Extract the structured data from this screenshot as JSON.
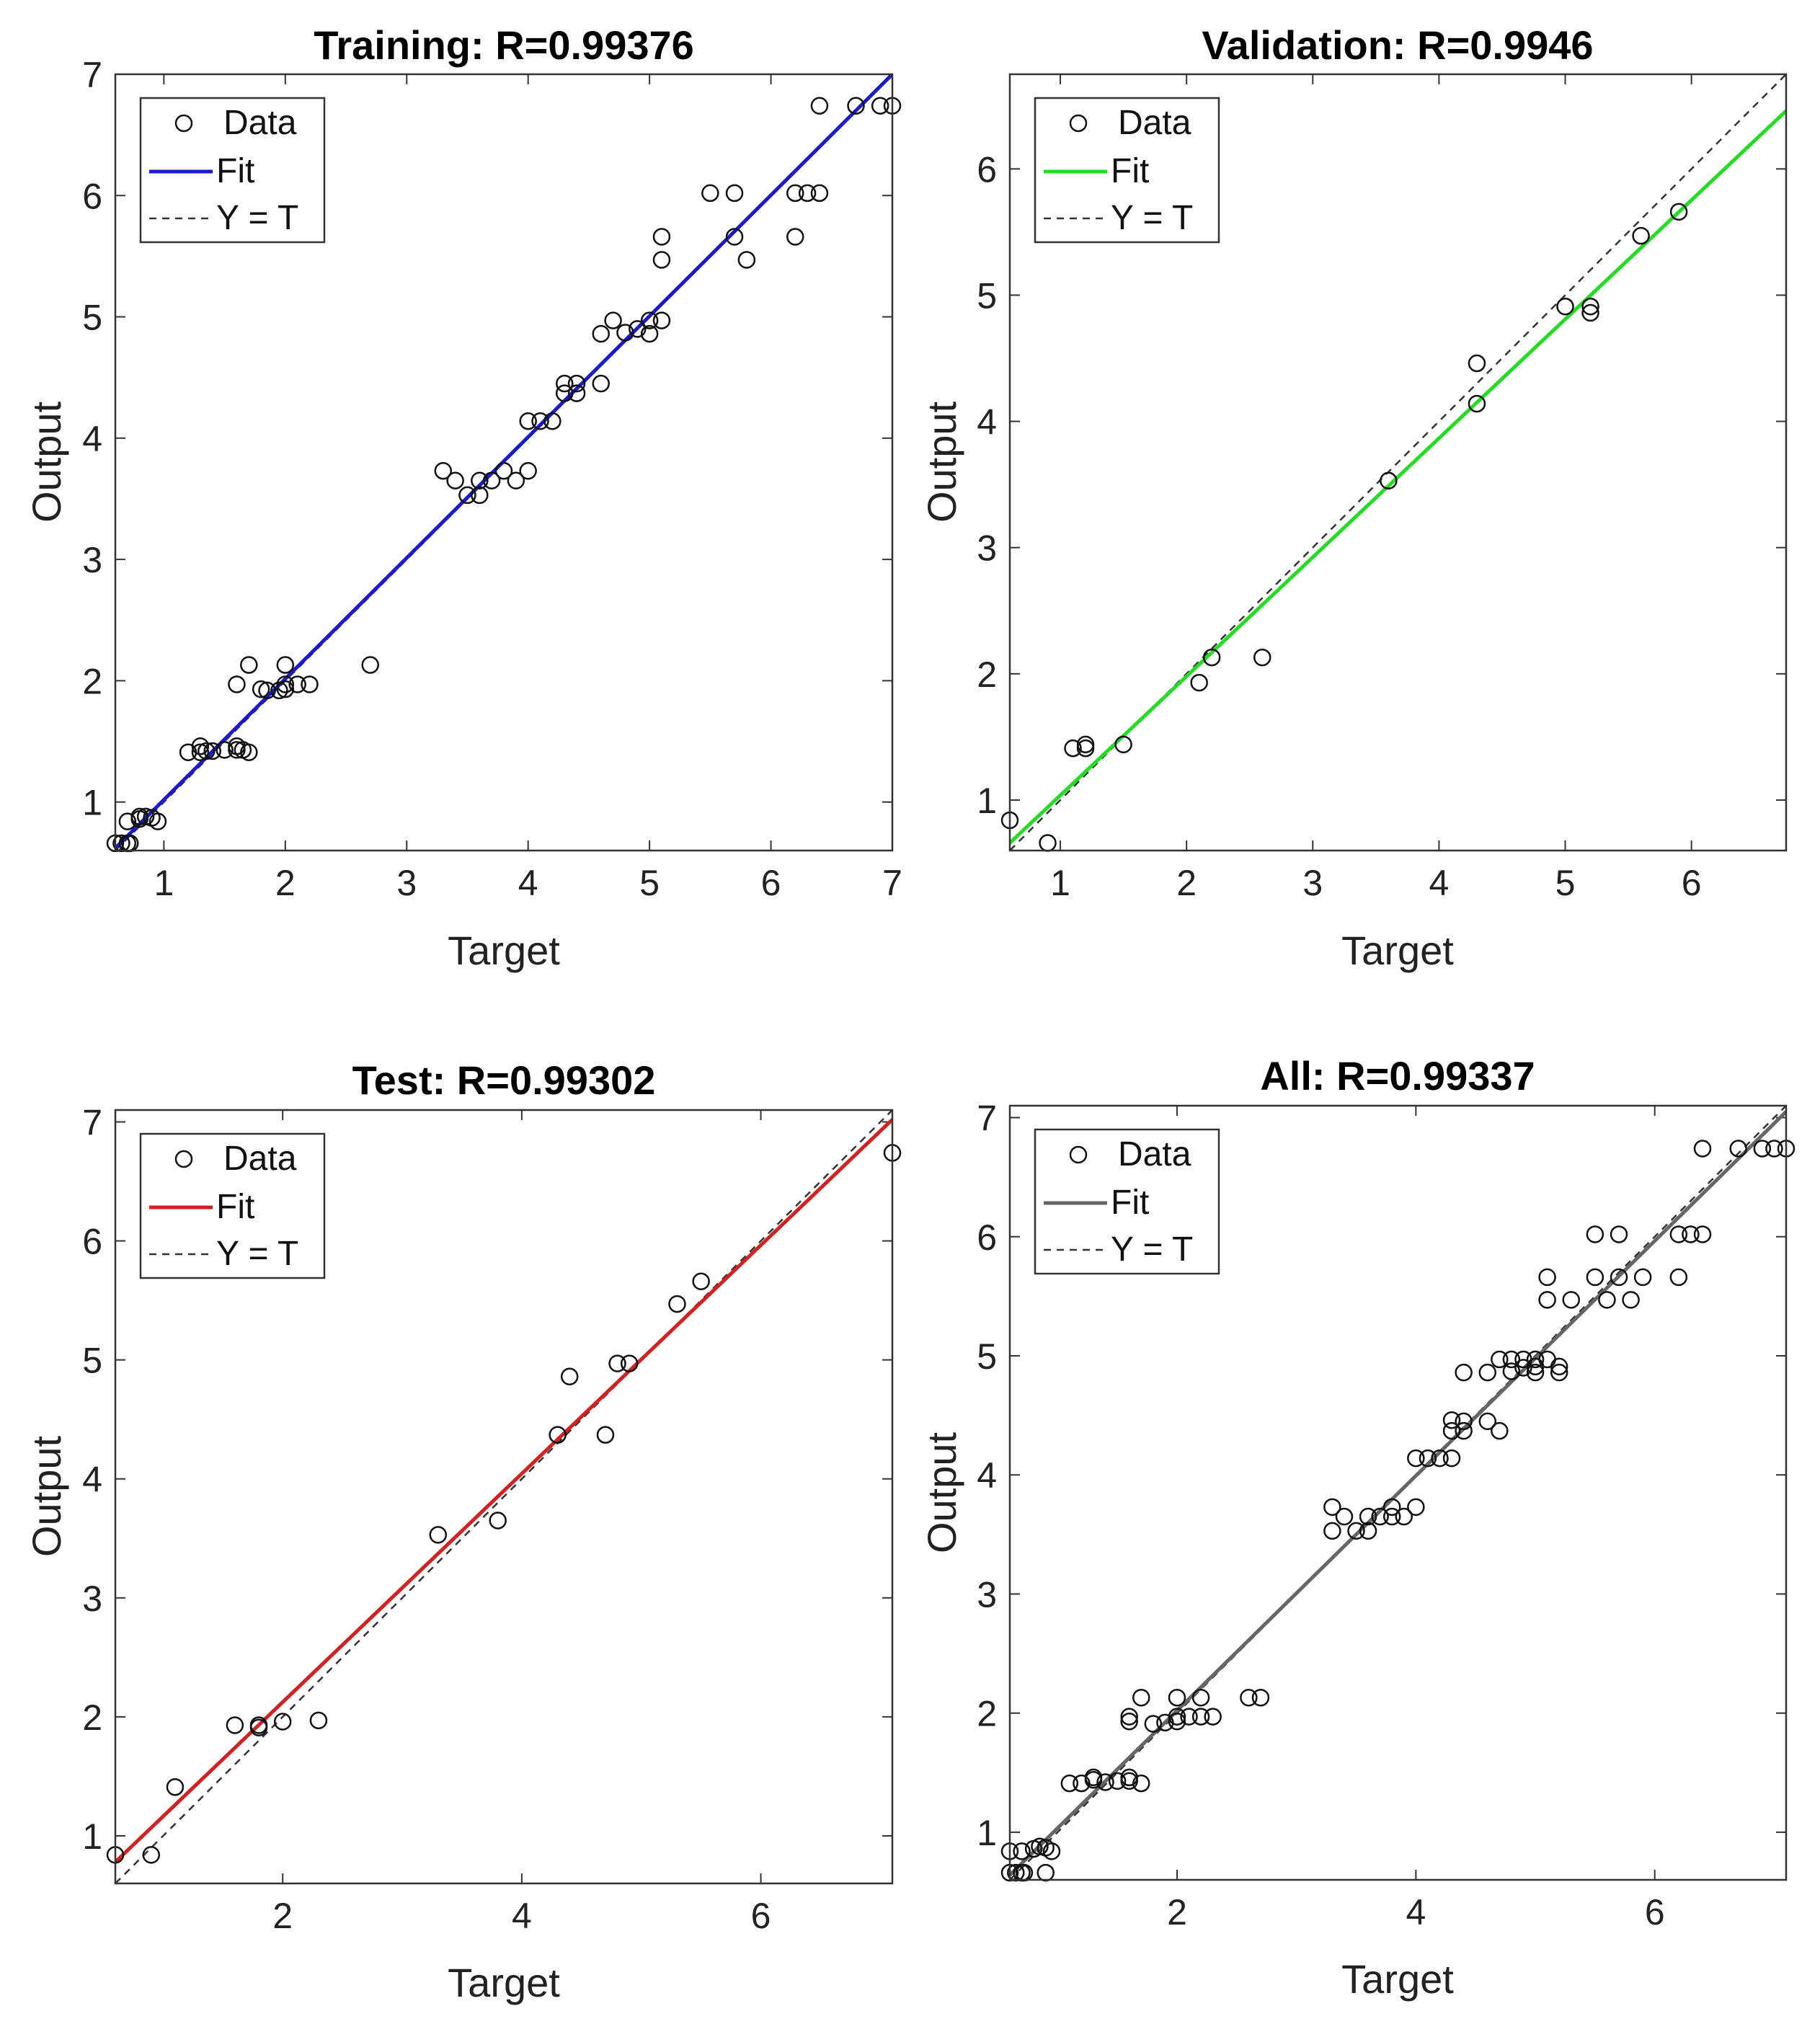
{
  "chart_data": [
    {
      "type": "scatter",
      "title": "Training: R=0.99376",
      "xlabel": "Target",
      "ylabel": "Output",
      "xlim": [
        0.6,
        7.0
      ],
      "ylim": [
        0.6,
        7.0
      ],
      "xticks": [
        1,
        2,
        3,
        4,
        5,
        6,
        7
      ],
      "yticks": [
        1,
        2,
        3,
        4,
        5,
        6,
        7
      ],
      "fit_color": "#1a1acc",
      "fit": {
        "x": [
          0.6,
          7.0
        ],
        "y": [
          0.62,
          7.0
        ]
      },
      "identity": {
        "x": [
          0.6,
          7.0
        ],
        "y": [
          0.6,
          7.0
        ]
      },
      "legend": {
        "position": "top-left",
        "entries": [
          "Data",
          "Fit",
          "Y = T"
        ]
      },
      "points": [
        [
          0.6,
          0.66
        ],
        [
          0.65,
          0.66
        ],
        [
          0.7,
          0.66
        ],
        [
          0.72,
          0.66
        ],
        [
          0.7,
          0.84
        ],
        [
          0.8,
          0.86
        ],
        [
          0.8,
          0.88
        ],
        [
          0.85,
          0.88
        ],
        [
          0.9,
          0.87
        ],
        [
          0.95,
          0.84
        ],
        [
          1.2,
          1.41
        ],
        [
          1.3,
          1.41
        ],
        [
          1.3,
          1.46
        ],
        [
          1.35,
          1.42
        ],
        [
          1.4,
          1.42
        ],
        [
          1.5,
          1.43
        ],
        [
          1.6,
          1.43
        ],
        [
          1.6,
          1.46
        ],
        [
          1.65,
          1.43
        ],
        [
          1.7,
          1.41
        ],
        [
          1.6,
          1.97
        ],
        [
          1.7,
          2.13
        ],
        [
          1.8,
          1.93
        ],
        [
          1.85,
          1.92
        ],
        [
          1.95,
          1.92
        ],
        [
          2.0,
          1.93
        ],
        [
          2.0,
          1.97
        ],
        [
          2.0,
          2.13
        ],
        [
          2.1,
          1.97
        ],
        [
          2.2,
          1.97
        ],
        [
          2.7,
          2.13
        ],
        [
          3.3,
          3.73
        ],
        [
          3.4,
          3.65
        ],
        [
          3.5,
          3.53
        ],
        [
          3.6,
          3.53
        ],
        [
          3.6,
          3.65
        ],
        [
          3.7,
          3.65
        ],
        [
          3.8,
          3.73
        ],
        [
          3.9,
          3.65
        ],
        [
          4.0,
          3.73
        ],
        [
          4.0,
          4.14
        ],
        [
          4.1,
          4.14
        ],
        [
          4.2,
          4.14
        ],
        [
          4.3,
          4.37
        ],
        [
          4.3,
          4.45
        ],
        [
          4.4,
          4.37
        ],
        [
          4.4,
          4.45
        ],
        [
          4.6,
          4.45
        ],
        [
          4.6,
          4.86
        ],
        [
          4.7,
          4.97
        ],
        [
          4.8,
          4.87
        ],
        [
          4.9,
          4.9
        ],
        [
          5.0,
          4.86
        ],
        [
          5.0,
          4.97
        ],
        [
          5.1,
          4.97
        ],
        [
          5.1,
          5.47
        ],
        [
          5.1,
          5.66
        ],
        [
          5.5,
          6.02
        ],
        [
          5.7,
          6.02
        ],
        [
          5.7,
          5.66
        ],
        [
          5.8,
          5.47
        ],
        [
          6.2,
          5.66
        ],
        [
          6.2,
          6.02
        ],
        [
          6.3,
          6.02
        ],
        [
          6.4,
          6.02
        ],
        [
          6.4,
          6.74
        ],
        [
          6.7,
          6.74
        ],
        [
          6.9,
          6.74
        ],
        [
          7.0,
          6.74
        ]
      ]
    },
    {
      "type": "scatter",
      "title": "Validation: R=0.9946",
      "xlabel": "Target",
      "ylabel": "Output",
      "xlim": [
        0.6,
        6.75
      ],
      "ylim": [
        0.6,
        6.75
      ],
      "xticks": [
        1,
        2,
        3,
        4,
        5,
        6
      ],
      "yticks": [
        1,
        2,
        3,
        4,
        5,
        6
      ],
      "fit_color": "#22dd22",
      "fit": {
        "x": [
          0.6,
          6.75
        ],
        "y": [
          0.66,
          6.46
        ]
      },
      "identity": {
        "x": [
          0.6,
          6.75
        ],
        "y": [
          0.6,
          6.75
        ]
      },
      "legend": {
        "position": "top-left",
        "entries": [
          "Data",
          "Fit",
          "Y = T"
        ]
      },
      "points": [
        [
          0.6,
          0.84
        ],
        [
          0.9,
          0.66
        ],
        [
          1.1,
          1.41
        ],
        [
          1.2,
          1.41
        ],
        [
          1.2,
          1.44
        ],
        [
          1.5,
          1.44
        ],
        [
          2.1,
          1.93
        ],
        [
          2.2,
          2.13
        ],
        [
          2.6,
          2.13
        ],
        [
          3.6,
          3.53
        ],
        [
          4.3,
          4.14
        ],
        [
          4.3,
          4.46
        ],
        [
          5.0,
          4.91
        ],
        [
          5.2,
          4.86
        ],
        [
          5.2,
          4.91
        ],
        [
          5.6,
          5.47
        ],
        [
          5.9,
          5.66
        ]
      ]
    },
    {
      "type": "scatter",
      "title": "Test: R=0.99302",
      "xlabel": "Target",
      "ylabel": "Output",
      "xlim": [
        0.6,
        7.1
      ],
      "ylim": [
        0.6,
        7.1
      ],
      "xticks": [
        2,
        4,
        6
      ],
      "yticks": [
        1,
        2,
        3,
        4,
        5,
        6,
        7
      ],
      "fit_color": "#d42020",
      "fit": {
        "x": [
          0.6,
          7.1
        ],
        "y": [
          0.78,
          7.02
        ]
      },
      "identity": {
        "x": [
          0.6,
          7.1
        ],
        "y": [
          0.6,
          7.1
        ]
      },
      "legend": {
        "position": "top-left",
        "entries": [
          "Data",
          "Fit",
          "Y = T"
        ]
      },
      "points": [
        [
          0.6,
          0.84
        ],
        [
          0.9,
          0.84
        ],
        [
          1.1,
          1.41
        ],
        [
          1.6,
          1.93
        ],
        [
          1.8,
          1.91
        ],
        [
          1.8,
          1.93
        ],
        [
          2.0,
          1.96
        ],
        [
          2.3,
          1.97
        ],
        [
          3.3,
          3.53
        ],
        [
          3.8,
          3.65
        ],
        [
          4.3,
          4.37
        ],
        [
          4.4,
          4.86
        ],
        [
          4.7,
          4.37
        ],
        [
          4.8,
          4.97
        ],
        [
          4.9,
          4.97
        ],
        [
          5.3,
          5.47
        ],
        [
          5.5,
          5.66
        ],
        [
          7.1,
          6.74
        ]
      ]
    },
    {
      "type": "scatter",
      "title": "All: R=0.99337",
      "xlabel": "Target",
      "ylabel": "Output",
      "xlim": [
        0.6,
        7.1
      ],
      "ylim": [
        0.6,
        7.1
      ],
      "xticks": [
        2,
        4,
        6
      ],
      "yticks": [
        1,
        2,
        3,
        4,
        5,
        6,
        7
      ],
      "fit_color": "#666666",
      "fit": {
        "x": [
          0.6,
          7.1
        ],
        "y": [
          0.64,
          7.05
        ]
      },
      "identity": {
        "x": [
          0.6,
          7.1
        ],
        "y": [
          0.6,
          7.1
        ]
      },
      "legend": {
        "position": "top-left",
        "entries": [
          "Data",
          "Fit",
          "Y = T"
        ]
      },
      "points": [
        [
          0.6,
          0.66
        ],
        [
          0.65,
          0.66
        ],
        [
          0.7,
          0.66
        ],
        [
          0.72,
          0.66
        ],
        [
          0.6,
          0.84
        ],
        [
          0.7,
          0.84
        ],
        [
          0.8,
          0.86
        ],
        [
          0.85,
          0.88
        ],
        [
          0.9,
          0.87
        ],
        [
          0.95,
          0.84
        ],
        [
          0.9,
          0.66
        ],
        [
          1.1,
          1.41
        ],
        [
          1.2,
          1.41
        ],
        [
          1.3,
          1.44
        ],
        [
          1.3,
          1.46
        ],
        [
          1.4,
          1.42
        ],
        [
          1.5,
          1.43
        ],
        [
          1.6,
          1.43
        ],
        [
          1.6,
          1.46
        ],
        [
          1.7,
          1.41
        ],
        [
          1.6,
          1.93
        ],
        [
          1.6,
          1.97
        ],
        [
          1.7,
          2.13
        ],
        [
          1.8,
          1.91
        ],
        [
          1.9,
          1.92
        ],
        [
          2.0,
          1.93
        ],
        [
          2.0,
          1.97
        ],
        [
          2.0,
          2.13
        ],
        [
          2.1,
          1.97
        ],
        [
          2.2,
          1.97
        ],
        [
          2.2,
          2.13
        ],
        [
          2.3,
          1.97
        ],
        [
          2.6,
          2.13
        ],
        [
          2.7,
          2.13
        ],
        [
          3.3,
          3.53
        ],
        [
          3.3,
          3.73
        ],
        [
          3.4,
          3.65
        ],
        [
          3.5,
          3.53
        ],
        [
          3.6,
          3.53
        ],
        [
          3.6,
          3.65
        ],
        [
          3.7,
          3.65
        ],
        [
          3.8,
          3.65
        ],
        [
          3.8,
          3.73
        ],
        [
          3.9,
          3.65
        ],
        [
          4.0,
          3.73
        ],
        [
          4.0,
          4.14
        ],
        [
          4.1,
          4.14
        ],
        [
          4.2,
          4.14
        ],
        [
          4.3,
          4.14
        ],
        [
          4.3,
          4.37
        ],
        [
          4.3,
          4.46
        ],
        [
          4.4,
          4.37
        ],
        [
          4.4,
          4.86
        ],
        [
          4.4,
          4.45
        ],
        [
          4.6,
          4.45
        ],
        [
          4.6,
          4.86
        ],
        [
          4.7,
          4.37
        ],
        [
          4.7,
          4.97
        ],
        [
          4.8,
          4.87
        ],
        [
          4.8,
          4.97
        ],
        [
          4.9,
          4.9
        ],
        [
          4.9,
          4.97
        ],
        [
          5.0,
          4.86
        ],
        [
          5.0,
          4.91
        ],
        [
          5.0,
          4.97
        ],
        [
          5.1,
          4.97
        ],
        [
          5.2,
          4.86
        ],
        [
          5.2,
          4.91
        ],
        [
          5.1,
          5.47
        ],
        [
          5.1,
          5.66
        ],
        [
          5.3,
          5.47
        ],
        [
          5.5,
          5.66
        ],
        [
          5.5,
          6.02
        ],
        [
          5.6,
          5.47
        ],
        [
          5.7,
          5.66
        ],
        [
          5.7,
          6.02
        ],
        [
          5.8,
          5.47
        ],
        [
          5.9,
          5.66
        ],
        [
          6.2,
          5.66
        ],
        [
          6.2,
          6.02
        ],
        [
          6.3,
          6.02
        ],
        [
          6.4,
          6.02
        ],
        [
          6.4,
          6.74
        ],
        [
          6.7,
          6.74
        ],
        [
          6.9,
          6.74
        ],
        [
          7.0,
          6.74
        ],
        [
          7.1,
          6.74
        ]
      ]
    }
  ]
}
